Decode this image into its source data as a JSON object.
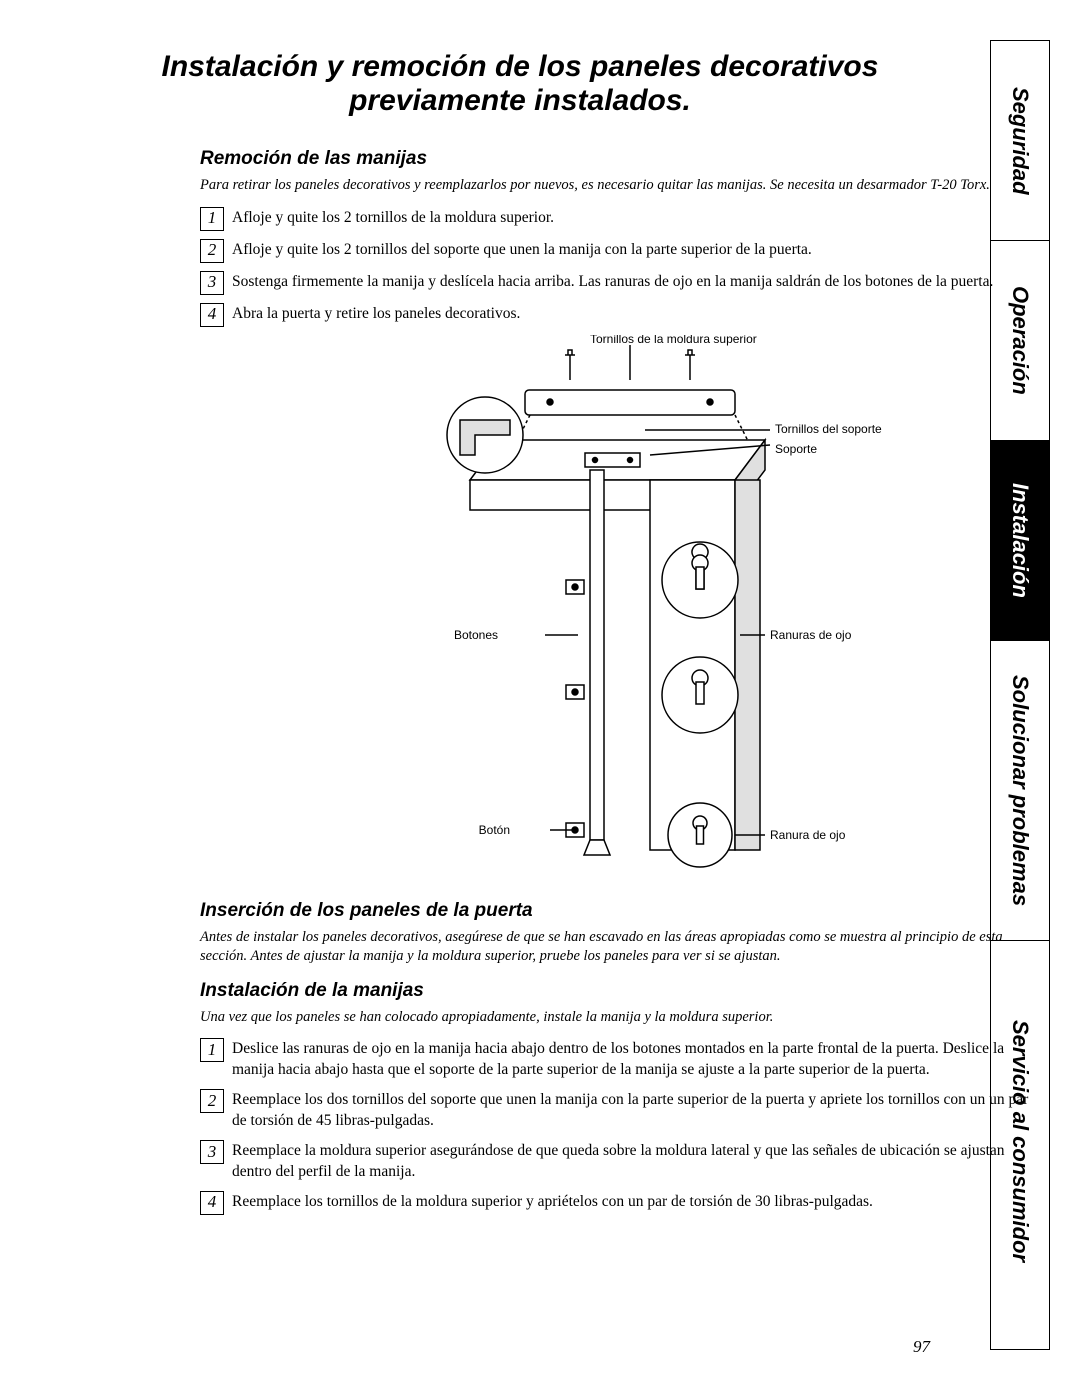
{
  "title": "Instalación y remoción de los paneles decorativos previamente instalados.",
  "section1": {
    "heading": "Remoción de las manijas",
    "intro": "Para retirar los paneles decorativos y reemplazarlos por nuevos, es necesario quitar las manijas. Se necesita un desarmador T-20 Torx.",
    "steps": [
      "Afloje y quite los 2 tornillos de la moldura superior.",
      "Afloje y quite los 2 tornillos del soporte que unen la manija con la parte superior de la puerta.",
      "Sostenga firmemente la manija y deslícela hacia arriba. Las ranuras de ojo en la manija saldrán de los botones de la puerta.",
      "Abra la puerta y retire los paneles decorativos."
    ]
  },
  "diagram": {
    "labels": {
      "top_screws": "Tornillos de la moldura superior",
      "bracket_screws": "Tornillos del soporte",
      "bracket": "Soporte",
      "buttons": "Botones",
      "eye_slots": "Ranuras de ojo",
      "button": "Botón",
      "eye_slot": "Ranura de ojo"
    },
    "colors": {
      "stroke": "#000000",
      "fill_light": "#ffffff",
      "fill_shade": "#e0e0e0"
    },
    "line_width": 1.5
  },
  "section2": {
    "heading": "Inserción de los paneles de la puerta",
    "intro": "Antes de instalar los paneles decorativos, asegúrese de que se han escavado en las áreas apropiadas como se muestra al principio de esta sección. Antes de ajustar la manija y la moldura superior, pruebe los paneles para ver si se ajustan."
  },
  "section3": {
    "heading": "Instalación de la manijas",
    "intro": "Una vez que los paneles se han colocado apropiadamente, instale la manija y la moldura superior.",
    "steps": [
      "Deslice las ranuras de ojo en la manija hacia abajo dentro de los botones montados en la parte frontal de la puerta. Deslice la manija hacia abajo hasta que el soporte de la parte superior de la manija se ajuste a la parte superior de la puerta.",
      "Reemplace los dos tornillos del soporte que unen la manija con la parte superior de la puerta y apriete los tornillos con un un par de torsión de 45 libras-pulgadas.",
      "Reemplace la moldura superior asegurándose de que queda sobre la moldura lateral y que las señales de ubicación se ajustan dentro del perfil de la manija.",
      "Reemplace los tornillos de la moldura superior y apriételos con un par de torsión de 30 libras-pulgadas."
    ]
  },
  "tabs": [
    "Seguridad",
    "Operación",
    "Instalación",
    "Solucionar problemas",
    "Servicio al consumidor"
  ],
  "tab_heights": [
    200,
    200,
    200,
    300,
    400
  ],
  "active_tab_index": 2,
  "page_number": "97"
}
